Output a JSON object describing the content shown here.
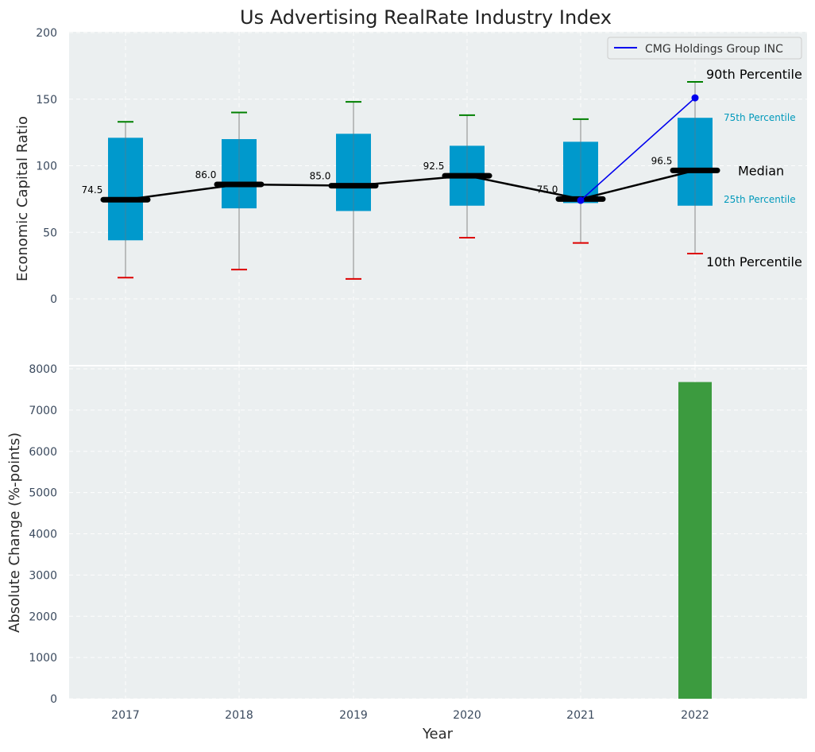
{
  "chart_data": [
    {
      "type": "box",
      "title": "Us Advertising RealRate Industry Index",
      "ylabel": "Economic Capital Ratio",
      "ylim": [
        0,
        200
      ],
      "yticks": [
        0,
        50,
        100,
        150,
        200
      ],
      "categories": [
        "2017",
        "2018",
        "2019",
        "2020",
        "2021",
        "2022"
      ],
      "boxes": [
        {
          "year": "2017",
          "p10": 16,
          "p25": 44,
          "median": 74.5,
          "p75": 121,
          "p90": 133,
          "median_label": "74.5"
        },
        {
          "year": "2018",
          "p10": 22,
          "p25": 68,
          "median": 86.0,
          "p75": 120,
          "p90": 140,
          "median_label": "86.0"
        },
        {
          "year": "2019",
          "p10": 15,
          "p25": 66,
          "median": 85.0,
          "p75": 124,
          "p90": 148,
          "median_label": "85.0"
        },
        {
          "year": "2020",
          "p10": 46,
          "p25": 70,
          "median": 92.5,
          "p75": 115,
          "p90": 138,
          "median_label": "92.5"
        },
        {
          "year": "2021",
          "p10": 42,
          "p25": 72,
          "median": 75.0,
          "p75": 118,
          "p90": 135,
          "median_label": "75.0"
        },
        {
          "year": "2022",
          "p10": 34,
          "p25": 70,
          "median": 96.5,
          "p75": 136,
          "p90": 163,
          "median_label": "96.5"
        }
      ],
      "company_series": {
        "name": "CMG Holdings Group INC",
        "x": [
          "2021",
          "2022"
        ],
        "values": [
          74,
          151
        ],
        "color": "#0000ee"
      },
      "legend": {
        "position": "top-right",
        "label": "CMG Holdings Group INC"
      },
      "annotations": {
        "p90": "90th Percentile",
        "p75": "75th Percentile",
        "median": "Median",
        "p25": "25th Percentile",
        "p10": "10th Percentile"
      },
      "colors": {
        "box": "#0099cc",
        "median": "#000000",
        "p90_cap": "#008000",
        "p10_cap": "#dd0000",
        "background": "#ebeff0"
      },
      "grid": true
    },
    {
      "type": "bar",
      "ylabel": "Absolute Change (%-points)",
      "xlabel": "Year",
      "ylim": [
        0,
        8000
      ],
      "yticks": [
        0,
        1000,
        2000,
        3000,
        4000,
        5000,
        6000,
        7000,
        8000
      ],
      "categories": [
        "2017",
        "2018",
        "2019",
        "2020",
        "2021",
        "2022"
      ],
      "values": [
        0,
        0,
        0,
        0,
        0,
        7680
      ],
      "color": "#3c9b3f",
      "grid": true
    }
  ]
}
